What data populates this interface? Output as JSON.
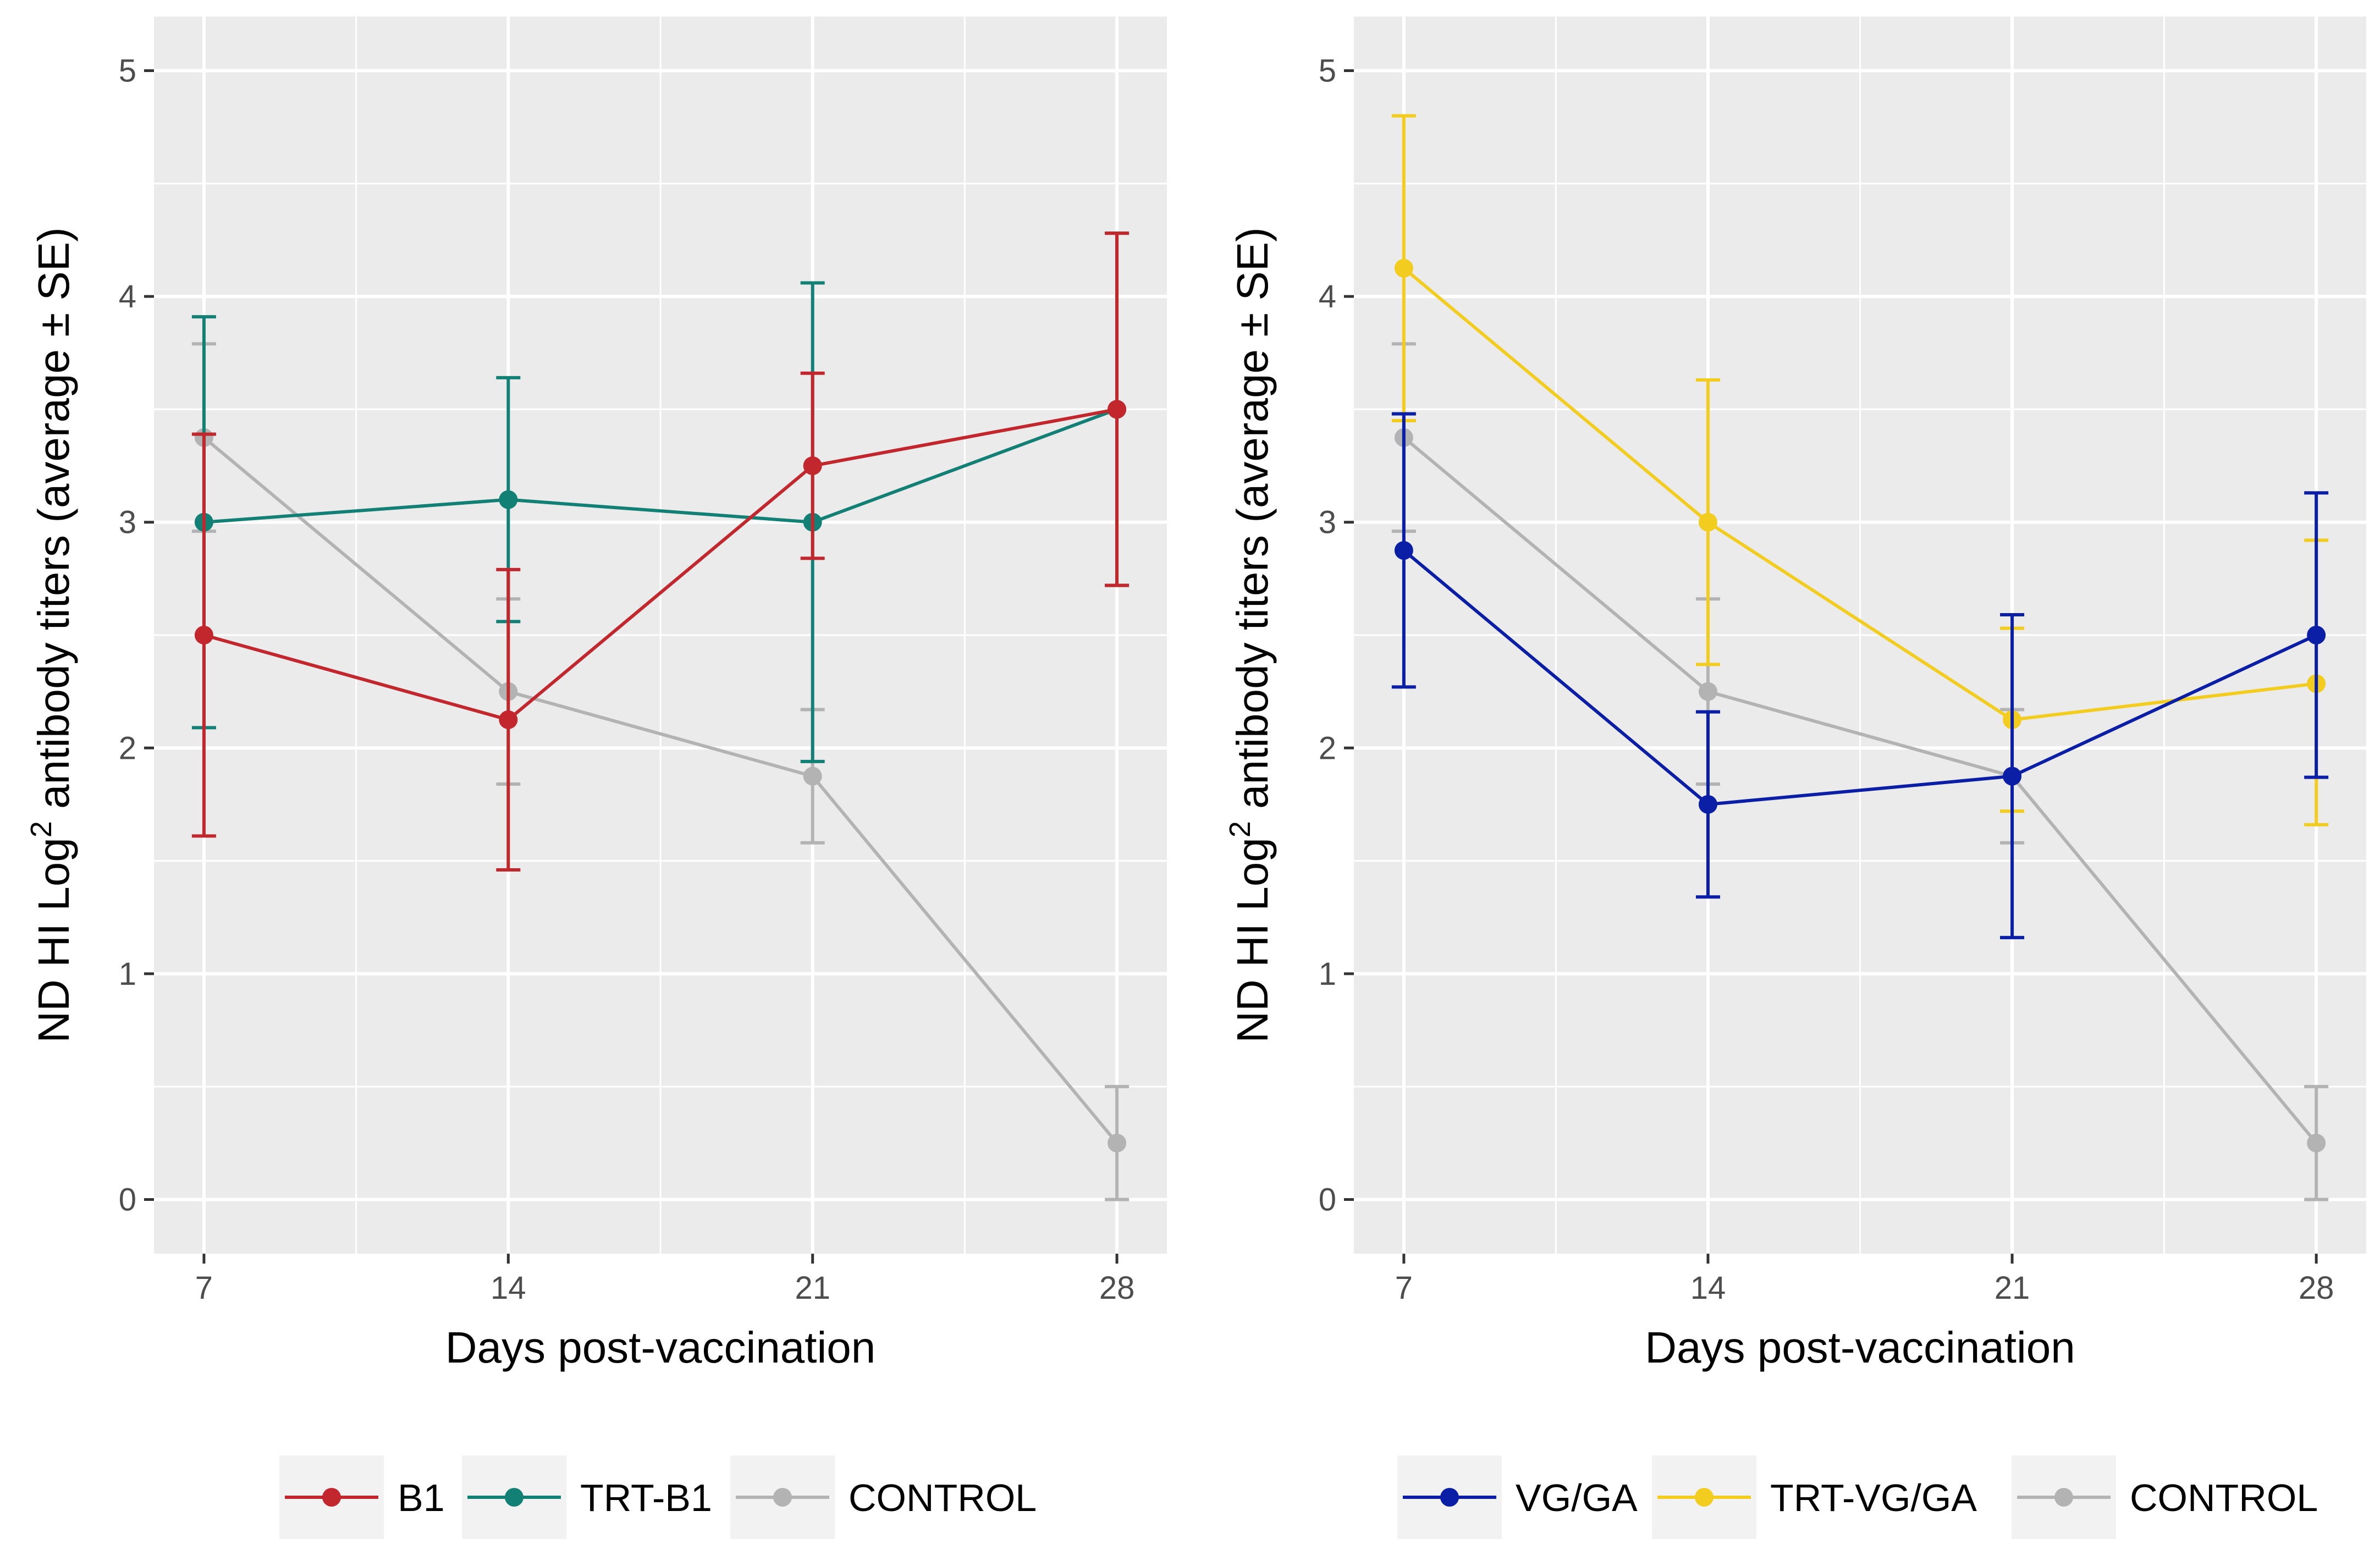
{
  "chart_data": [
    {
      "type": "line",
      "panel": "left",
      "xlabel": "Days post-vaccination",
      "ylabel_prefix": "ND HI  Log",
      "ylabel_superscript": "2",
      "ylabel_suffix": " antibody titers (average ± SE)",
      "x": [
        7,
        14,
        21,
        28
      ],
      "xlim": [
        5.85,
        29.15
      ],
      "ylim": [
        -0.24,
        5.24
      ],
      "xticks": [
        7,
        14,
        21,
        28
      ],
      "yticks": [
        0,
        1,
        2,
        3,
        4,
        5
      ],
      "grid": true,
      "legend_position": "bottom",
      "series": [
        {
          "name": "B1",
          "color": "#c1272d",
          "values": [
            2.5,
            2.125,
            3.25,
            3.5
          ],
          "lower": [
            1.61,
            1.46,
            2.84,
            2.72
          ],
          "upper": [
            3.39,
            2.79,
            3.66,
            4.28
          ]
        },
        {
          "name": "TRT-B1",
          "color": "#138075",
          "values": [
            3.0,
            3.1,
            3.0,
            3.5
          ],
          "lower": [
            2.09,
            2.56,
            1.94,
            2.72
          ],
          "upper": [
            3.91,
            3.64,
            4.06,
            4.28
          ]
        },
        {
          "name": "CONTROL",
          "color": "#b3b3b3",
          "values": [
            3.375,
            2.25,
            1.875,
            0.25
          ],
          "lower": [
            2.96,
            1.84,
            1.58,
            0.0
          ],
          "upper": [
            3.79,
            2.66,
            2.17,
            0.5
          ]
        }
      ]
    },
    {
      "type": "line",
      "panel": "right",
      "xlabel": "Days post-vaccination",
      "ylabel_prefix": "ND HI  Log",
      "ylabel_superscript": "2",
      "ylabel_suffix": " antibody titers (average ± SE)",
      "x": [
        7,
        14,
        21,
        28
      ],
      "xlim": [
        5.85,
        29.15
      ],
      "ylim": [
        -0.24,
        5.24
      ],
      "xticks": [
        7,
        14,
        21,
        28
      ],
      "yticks": [
        0,
        1,
        2,
        3,
        4,
        5
      ],
      "grid": true,
      "legend_position": "bottom",
      "series": [
        {
          "name": "VG/GA",
          "color": "#0a1ea6",
          "values": [
            2.875,
            1.75,
            1.875,
            2.5
          ],
          "lower": [
            2.27,
            1.34,
            1.16,
            1.87
          ],
          "upper": [
            3.48,
            2.16,
            2.59,
            3.13
          ]
        },
        {
          "name": "TRT-VG/GA",
          "color": "#f2cc1f",
          "values": [
            4.125,
            3.0,
            2.125,
            2.285
          ],
          "lower": [
            3.45,
            2.37,
            1.72,
            1.66
          ],
          "upper": [
            4.8,
            3.63,
            2.53,
            2.92
          ]
        },
        {
          "name": "CONTROL",
          "color": "#b3b3b3",
          "values": [
            3.375,
            2.25,
            1.875,
            0.25
          ],
          "lower": [
            2.96,
            1.84,
            1.58,
            0.0
          ],
          "upper": [
            3.79,
            2.66,
            2.17,
            0.5
          ]
        }
      ]
    }
  ]
}
